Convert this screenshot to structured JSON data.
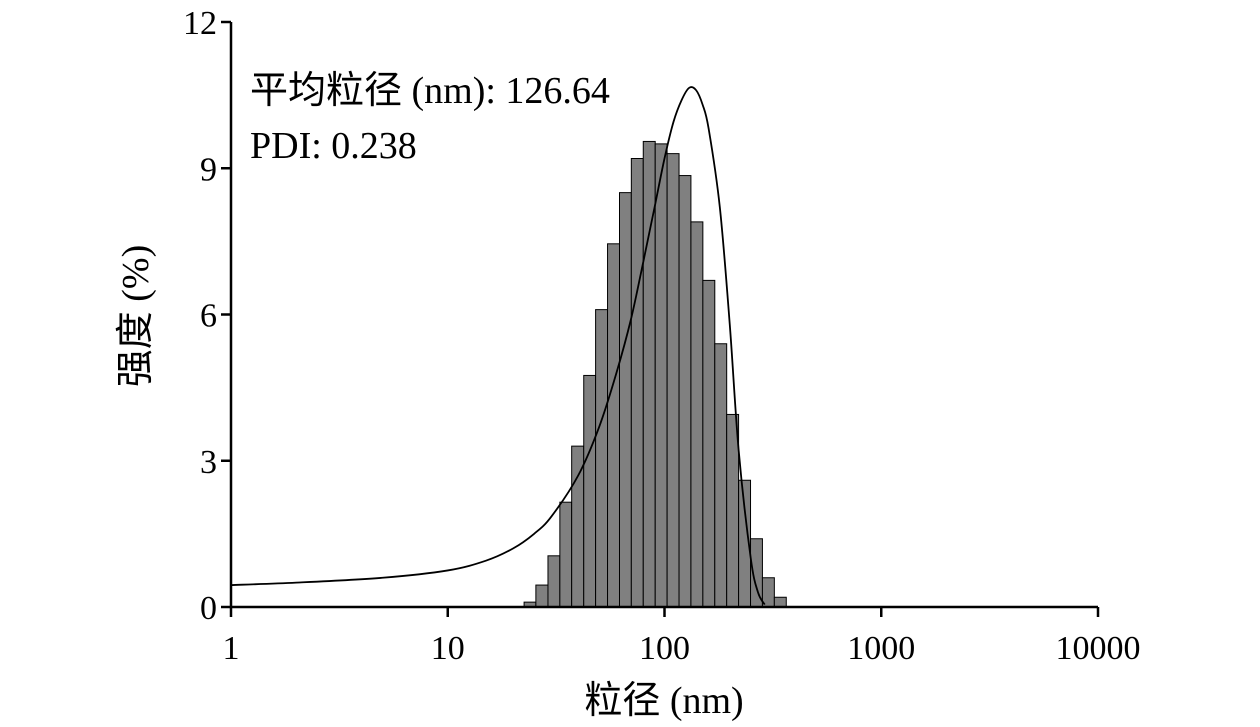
{
  "chart_data": {
    "type": "bar",
    "x_scale": "log",
    "xlabel": "粒径 (nm)",
    "ylabel": "强度 (%)",
    "xlim": [
      1,
      10000
    ],
    "ylim": [
      0,
      12
    ],
    "x_ticks": [
      "1",
      "10",
      "100",
      "1000",
      "10000"
    ],
    "y_ticks": [
      "0",
      "3",
      "6",
      "9",
      "12"
    ],
    "annotations": [
      "平均粒径 (nm): 126.64",
      "PDI: 0.238"
    ],
    "grid": false,
    "series": [
      {
        "type": "histogram",
        "bins": [
          {
            "x_from": 22.5,
            "x_to": 25.5,
            "value": 0.1
          },
          {
            "x_from": 25.5,
            "x_to": 29.0,
            "value": 0.45
          },
          {
            "x_from": 29.0,
            "x_to": 32.9,
            "value": 1.05
          },
          {
            "x_from": 32.9,
            "x_to": 37.3,
            "value": 2.15
          },
          {
            "x_from": 37.3,
            "x_to": 42.4,
            "value": 3.3
          },
          {
            "x_from": 42.4,
            "x_to": 48.1,
            "value": 4.75
          },
          {
            "x_from": 48.1,
            "x_to": 54.6,
            "value": 6.1
          },
          {
            "x_from": 54.6,
            "x_to": 62.0,
            "value": 7.45
          },
          {
            "x_from": 62.0,
            "x_to": 70.3,
            "value": 8.5
          },
          {
            "x_from": 70.3,
            "x_to": 79.8,
            "value": 9.2
          },
          {
            "x_from": 79.8,
            "x_to": 90.6,
            "value": 9.55
          },
          {
            "x_from": 90.6,
            "x_to": 102.8,
            "value": 9.5
          },
          {
            "x_from": 102.8,
            "x_to": 116.7,
            "value": 9.3
          },
          {
            "x_from": 116.7,
            "x_to": 132.4,
            "value": 8.85
          },
          {
            "x_from": 132.4,
            "x_to": 150.3,
            "value": 7.9
          },
          {
            "x_from": 150.3,
            "x_to": 170.6,
            "value": 6.7
          },
          {
            "x_from": 170.6,
            "x_to": 193.6,
            "value": 5.4
          },
          {
            "x_from": 193.6,
            "x_to": 219.7,
            "value": 3.95
          },
          {
            "x_from": 219.7,
            "x_to": 249.4,
            "value": 2.6
          },
          {
            "x_from": 249.4,
            "x_to": 283.0,
            "value": 1.4
          },
          {
            "x_from": 283.0,
            "x_to": 321.2,
            "value": 0.6
          },
          {
            "x_from": 321.2,
            "x_to": 364.6,
            "value": 0.2
          }
        ]
      },
      {
        "type": "line",
        "x": [
          1,
          2,
          5,
          10,
          15,
          20,
          25,
          30,
          40,
          50,
          60,
          70,
          80,
          90,
          100,
          110,
          120,
          130,
          140,
          150,
          160,
          180,
          200,
          220,
          250,
          270,
          290
        ],
        "y": [
          0.45,
          0.5,
          0.6,
          0.75,
          0.95,
          1.2,
          1.5,
          1.85,
          2.7,
          3.7,
          4.8,
          5.9,
          7.1,
          8.2,
          9.2,
          9.95,
          10.4,
          10.65,
          10.6,
          10.3,
          9.8,
          8.2,
          5.8,
          3.2,
          1.0,
          0.3,
          0.05
        ]
      }
    ]
  }
}
